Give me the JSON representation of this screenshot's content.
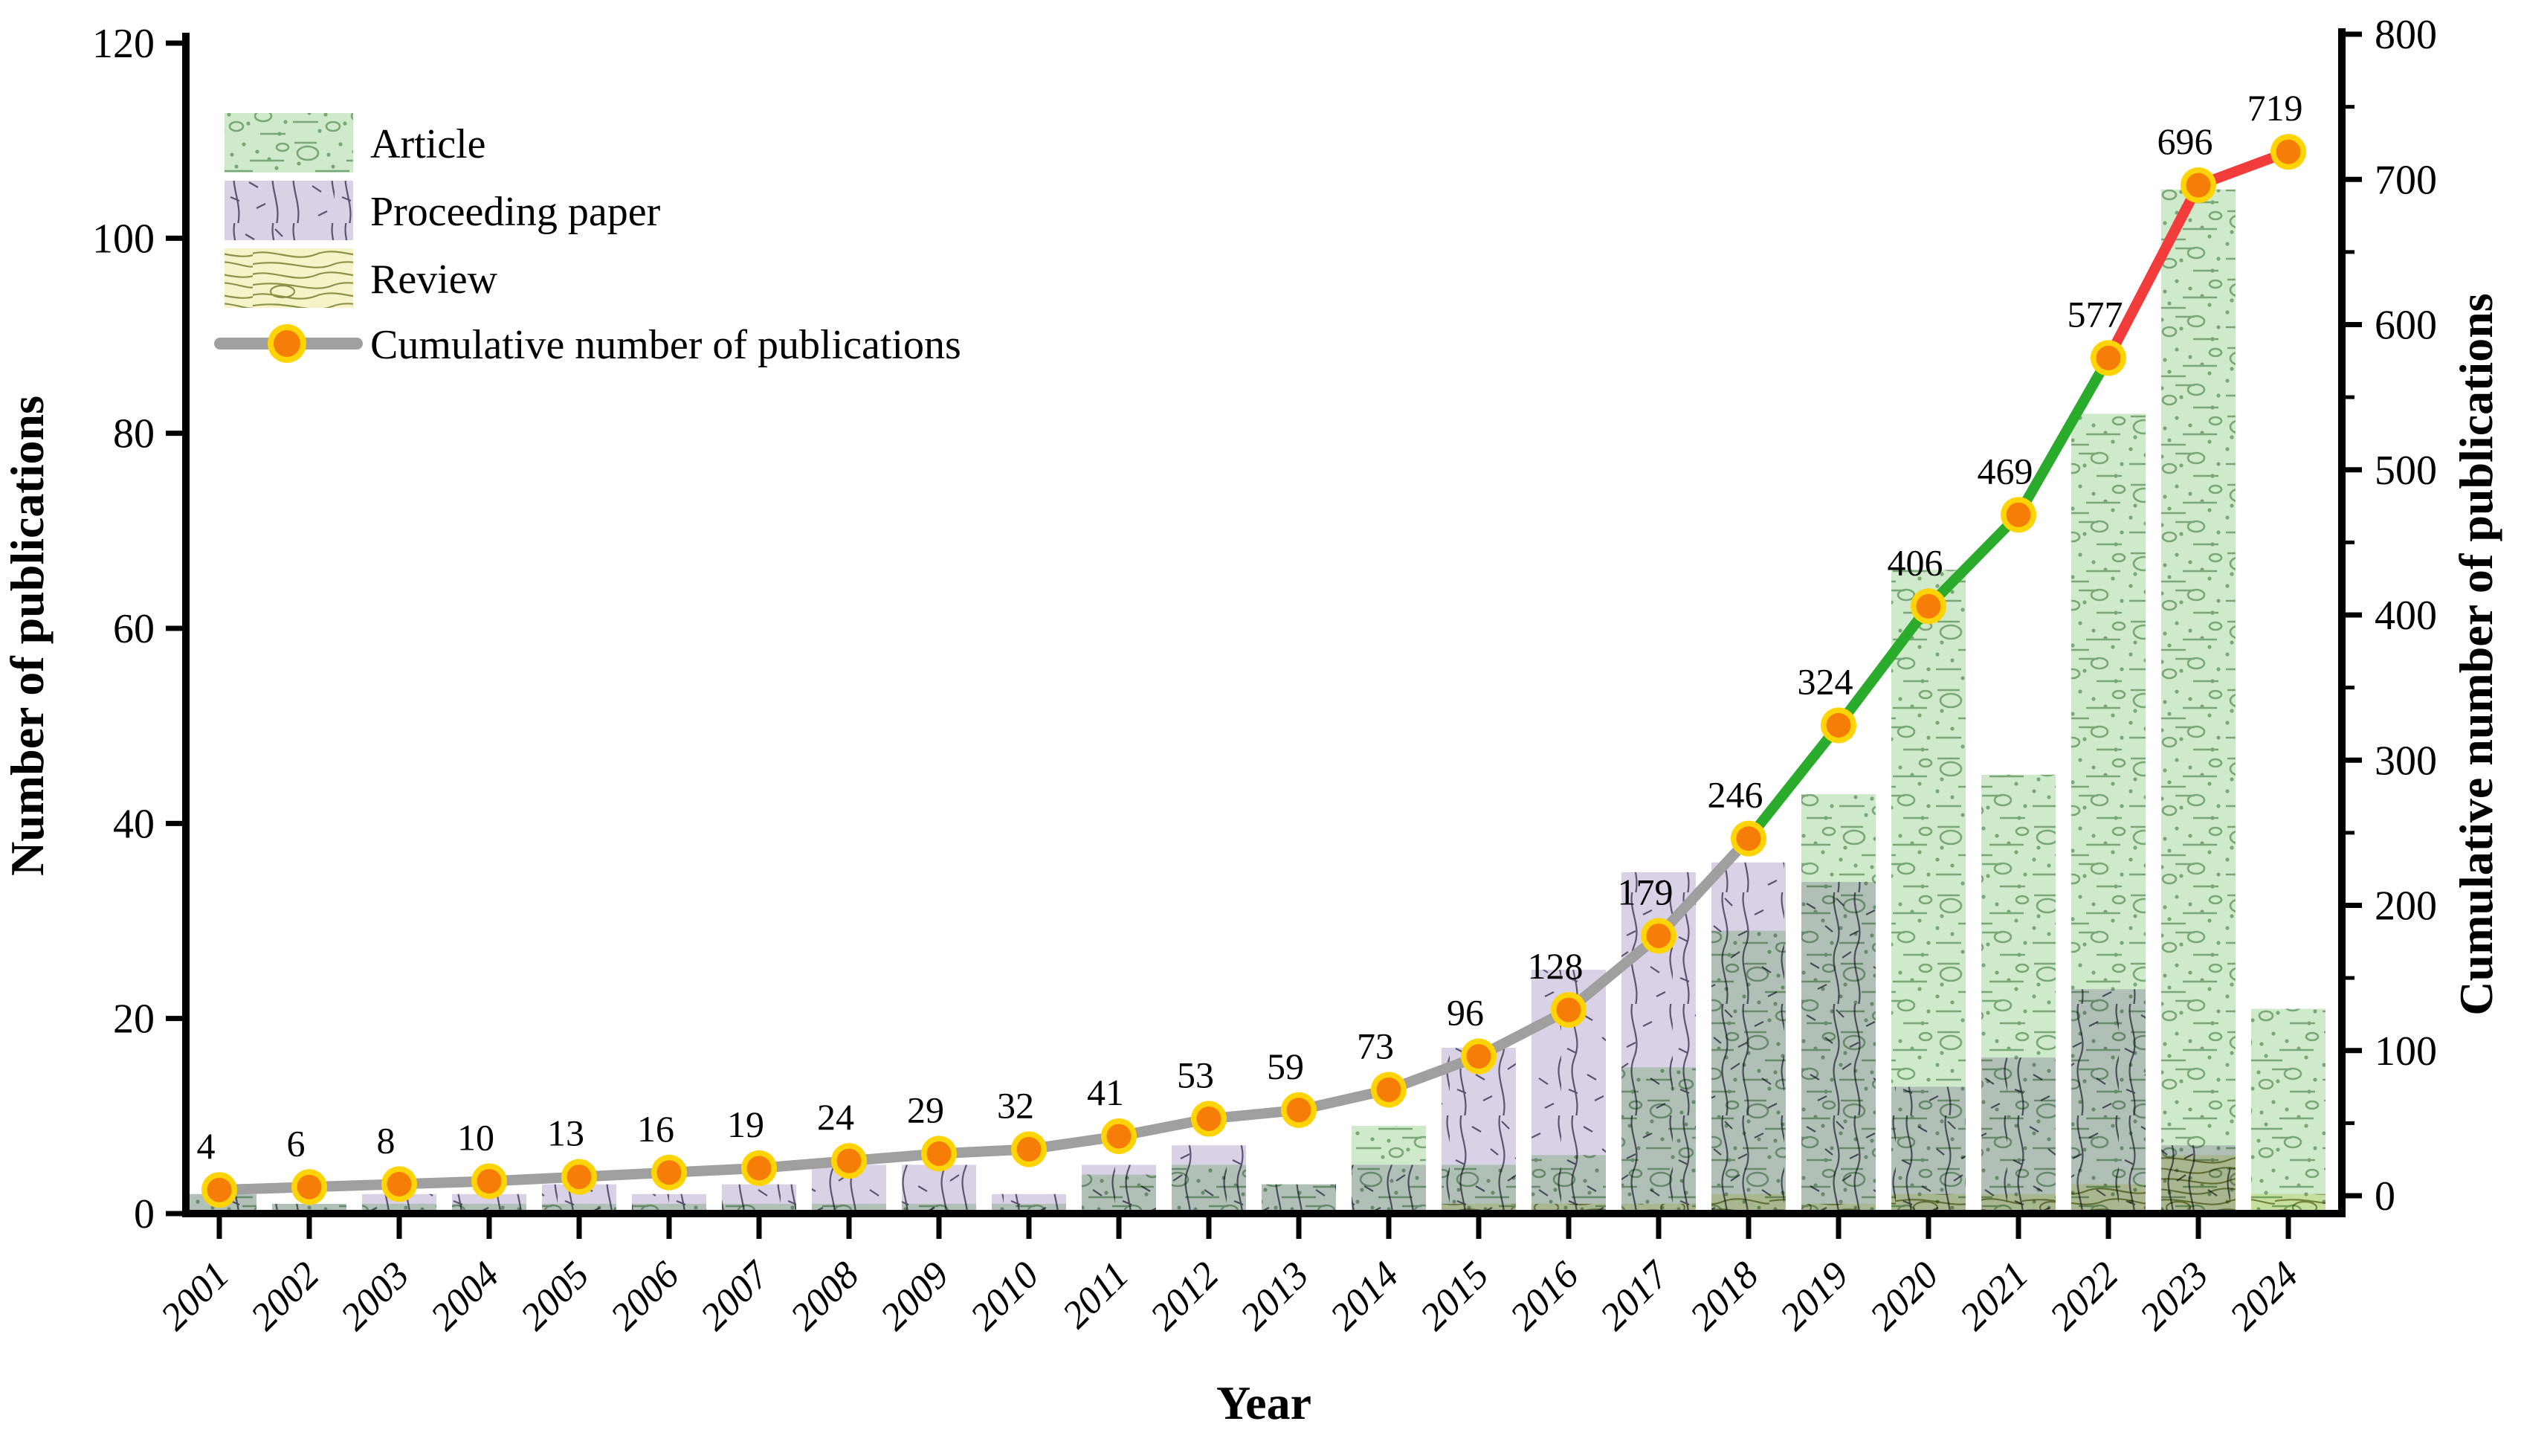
{
  "figure": {
    "background": "#ffffff"
  },
  "chart_data": {
    "type": "bar",
    "subtype": "overlapped-pattern-bars-with-cumulative-line",
    "title": "",
    "xlabel": "Year",
    "ylabel_left": "Number of publications",
    "ylabel_right": "Cumulative number of publications",
    "categories": [
      "2001",
      "2002",
      "2003",
      "2004",
      "2005",
      "2006",
      "2007",
      "2008",
      "2009",
      "2010",
      "2011",
      "2012",
      "2013",
      "2014",
      "2015",
      "2016",
      "2017",
      "2018",
      "2019",
      "2020",
      "2021",
      "2022",
      "2023",
      "2024"
    ],
    "series": [
      {
        "name": "Article",
        "type": "bar",
        "axis": "left",
        "values": [
          2,
          1,
          1,
          1,
          1,
          1,
          1,
          1,
          1,
          1,
          4,
          5,
          3,
          9,
          5,
          6,
          15,
          29,
          43,
          66,
          45,
          82,
          105,
          21
        ]
      },
      {
        "name": "Proceeding paper",
        "type": "bar",
        "axis": "left",
        "values": [
          2,
          1,
          2,
          2,
          3,
          2,
          3,
          5,
          5,
          2,
          5,
          7,
          3,
          5,
          17,
          25,
          35,
          36,
          34,
          13,
          16,
          23,
          7,
          0
        ]
      },
      {
        "name": "Review",
        "type": "bar",
        "axis": "left",
        "values": [
          0,
          0,
          0,
          0,
          0,
          0,
          0,
          0,
          0,
          0,
          0,
          0,
          0,
          0,
          1,
          1,
          1,
          2,
          1,
          2,
          2,
          3,
          6,
          2
        ]
      },
      {
        "name": "Cumulative number of publications",
        "type": "line",
        "axis": "right",
        "values": [
          4,
          6,
          8,
          10,
          13,
          16,
          19,
          24,
          29,
          32,
          41,
          53,
          59,
          73,
          96,
          128,
          179,
          246,
          324,
          406,
          469,
          577,
          696,
          719
        ],
        "point_labels": [
          "4",
          "6",
          "8",
          "10",
          "13",
          "16",
          "19",
          "24",
          "29",
          "32",
          "41",
          "53",
          "59",
          "73",
          "96",
          "128",
          "179",
          "246",
          "324",
          "406",
          "469",
          "577",
          "696",
          "719"
        ]
      }
    ],
    "line_segments": [
      {
        "from_index": 0,
        "to_index": 17,
        "color": "#9f9f9f"
      },
      {
        "from_index": 17,
        "to_index": 21,
        "color": "#2bab2b"
      },
      {
        "from_index": 21,
        "to_index": 23,
        "color": "#f23b3b"
      }
    ],
    "left_axis": {
      "label": "Number of publications",
      "min": 0,
      "max": 120,
      "ticks": [
        "0",
        "20",
        "40",
        "60",
        "80",
        "100",
        "120"
      ]
    },
    "right_axis": {
      "label": "Cumulative number of publications",
      "min": 0,
      "max": 800,
      "ticks": [
        "0",
        "100",
        "200",
        "300",
        "400",
        "500",
        "600",
        "700",
        "800"
      ],
      "minor_step": 50
    },
    "x_axis": {
      "label": "Year"
    },
    "legend": {
      "items": [
        {
          "label": "Article",
          "swatch": "article-pattern"
        },
        {
          "label": "Proceeding paper",
          "swatch": "proceeding-pattern"
        },
        {
          "label": "Review",
          "swatch": "review-pattern"
        },
        {
          "label": "Cumulative number of publications",
          "swatch": "line-marker"
        }
      ],
      "position": "upper-left",
      "grid": false
    },
    "colors": {
      "article_fill": "#cfe9cb",
      "article_stroke": "#79a877",
      "proceeding_fill": "#d9d2e6",
      "proceeding_stroke": "#5b5470",
      "review_fill": "#f4f4c8",
      "review_stroke": "#8d9249",
      "line_gray": "#9f9f9f",
      "line_green": "#2bab2b",
      "line_red": "#f23b3b",
      "marker_fill": "#f67d08",
      "marker_ring": "#ffd405",
      "axis": "#000000"
    }
  }
}
